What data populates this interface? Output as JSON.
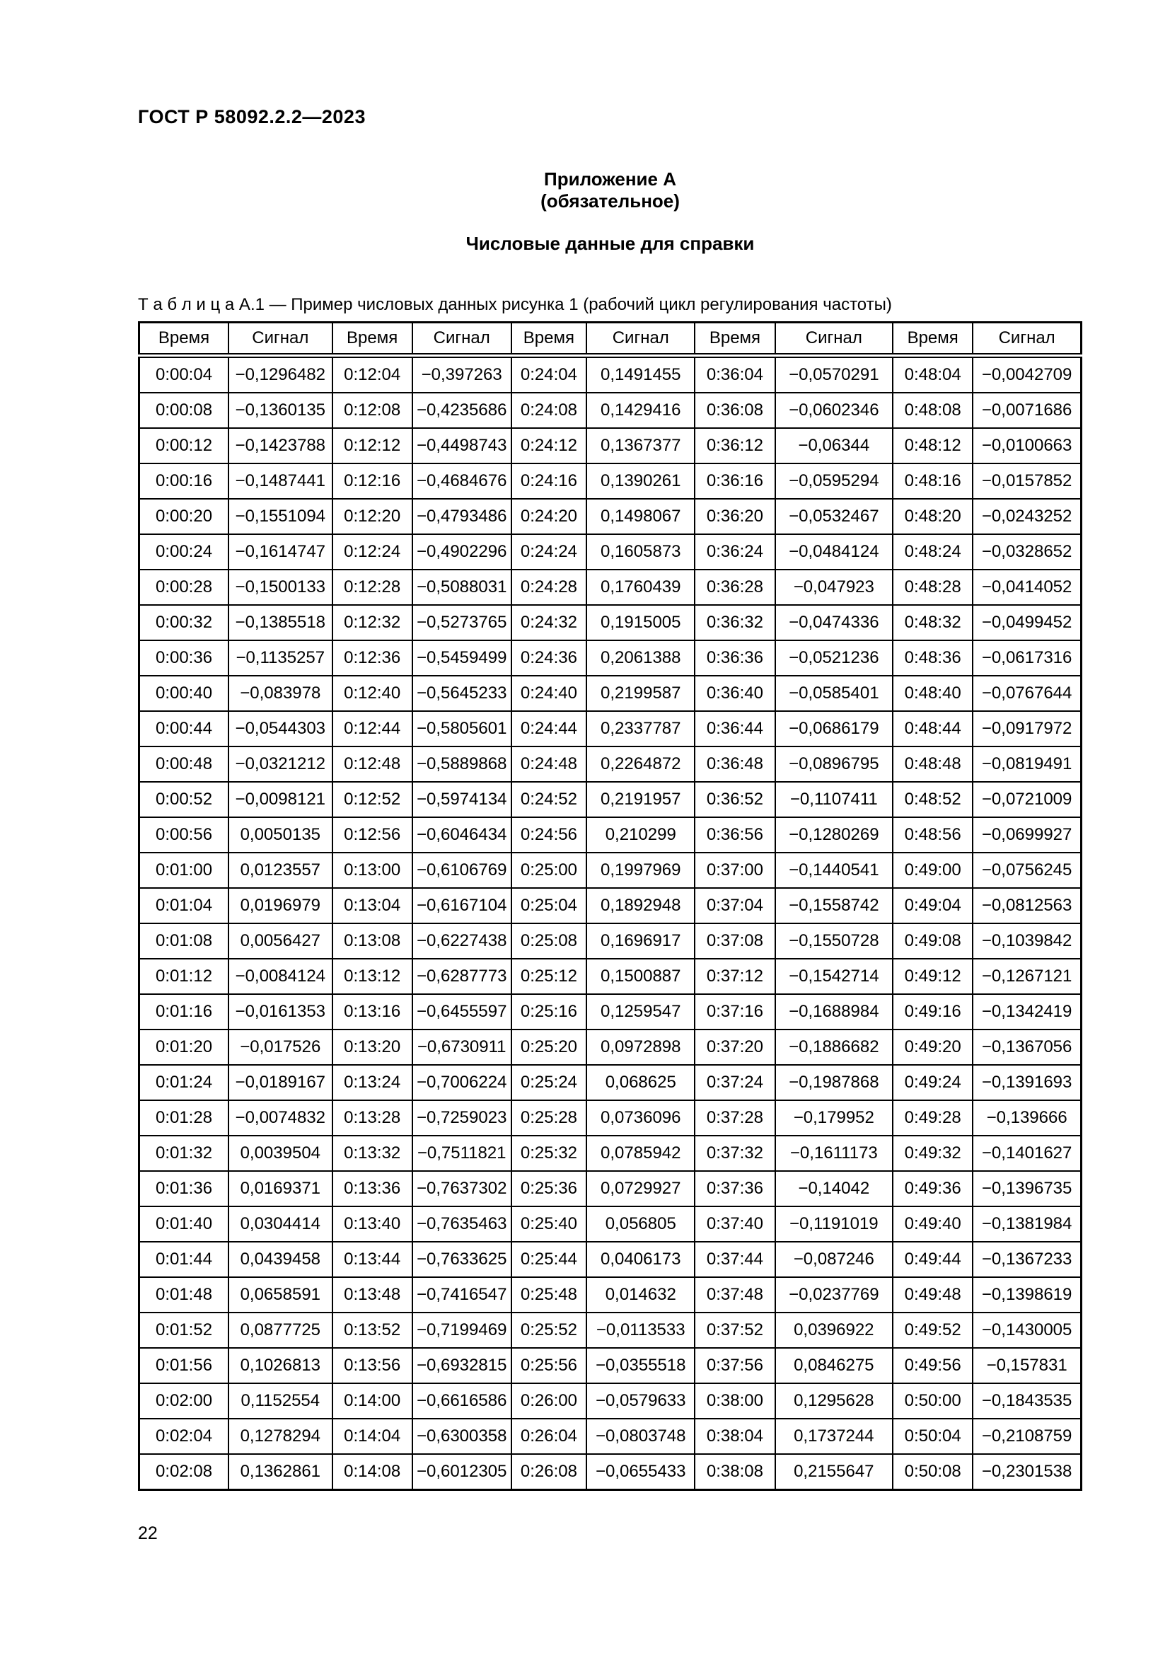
{
  "page": {
    "doc_code": "ГОСТ Р 58092.2.2—2023",
    "appendix_title": "Приложение А",
    "appendix_subtitle": "(обязательное)",
    "section_title": "Числовые данные для справки",
    "table_caption": "Т а б л и ц а  А.1 — Пример числовых данных рисунка 1 (рабочий цикл регулирования частоты)",
    "page_number": "22"
  },
  "table": {
    "headers": [
      "Время",
      "Сигнал",
      "Время",
      "Сигнал",
      "Время",
      "Сигнал",
      "Время",
      "Сигнал",
      "Время",
      "Сигнал"
    ],
    "col_widths_pct": [
      9.5,
      11.0,
      8.5,
      10.5,
      8.0,
      11.5,
      8.5,
      12.5,
      8.5,
      11.5
    ],
    "rows": [
      [
        "0:00:04",
        "−0,1296482",
        "0:12:04",
        "−0,397263",
        "0:24:04",
        "0,1491455",
        "0:36:04",
        "−0,0570291",
        "0:48:04",
        "−0,0042709"
      ],
      [
        "0:00:08",
        "−0,1360135",
        "0:12:08",
        "−0,4235686",
        "0:24:08",
        "0,1429416",
        "0:36:08",
        "−0,0602346",
        "0:48:08",
        "−0,0071686"
      ],
      [
        "0:00:12",
        "−0,1423788",
        "0:12:12",
        "−0,4498743",
        "0:24:12",
        "0,1367377",
        "0:36:12",
        "−0,06344",
        "0:48:12",
        "−0,0100663"
      ],
      [
        "0:00:16",
        "−0,1487441",
        "0:12:16",
        "−0,4684676",
        "0:24:16",
        "0,1390261",
        "0:36:16",
        "−0,0595294",
        "0:48:16",
        "−0,0157852"
      ],
      [
        "0:00:20",
        "−0,1551094",
        "0:12:20",
        "−0,4793486",
        "0:24:20",
        "0,1498067",
        "0:36:20",
        "−0,0532467",
        "0:48:20",
        "−0,0243252"
      ],
      [
        "0:00:24",
        "−0,1614747",
        "0:12:24",
        "−0,4902296",
        "0:24:24",
        "0,1605873",
        "0:36:24",
        "−0,0484124",
        "0:48:24",
        "−0,0328652"
      ],
      [
        "0:00:28",
        "−0,1500133",
        "0:12:28",
        "−0,5088031",
        "0:24:28",
        "0,1760439",
        "0:36:28",
        "−0,047923",
        "0:48:28",
        "−0,0414052"
      ],
      [
        "0:00:32",
        "−0,1385518",
        "0:12:32",
        "−0,5273765",
        "0:24:32",
        "0,1915005",
        "0:36:32",
        "−0,0474336",
        "0:48:32",
        "−0,0499452"
      ],
      [
        "0:00:36",
        "−0,1135257",
        "0:12:36",
        "−0,5459499",
        "0:24:36",
        "0,2061388",
        "0:36:36",
        "−0,0521236",
        "0:48:36",
        "−0,0617316"
      ],
      [
        "0:00:40",
        "−0,083978",
        "0:12:40",
        "−0,5645233",
        "0:24:40",
        "0,2199587",
        "0:36:40",
        "−0,0585401",
        "0:48:40",
        "−0,0767644"
      ],
      [
        "0:00:44",
        "−0,0544303",
        "0:12:44",
        "−0,5805601",
        "0:24:44",
        "0,2337787",
        "0:36:44",
        "−0,0686179",
        "0:48:44",
        "−0,0917972"
      ],
      [
        "0:00:48",
        "−0,0321212",
        "0:12:48",
        "−0,5889868",
        "0:24:48",
        "0,2264872",
        "0:36:48",
        "−0,0896795",
        "0:48:48",
        "−0,0819491"
      ],
      [
        "0:00:52",
        "−0,0098121",
        "0:12:52",
        "−0,5974134",
        "0:24:52",
        "0,2191957",
        "0:36:52",
        "−0,1107411",
        "0:48:52",
        "−0,0721009"
      ],
      [
        "0:00:56",
        "0,0050135",
        "0:12:56",
        "−0,6046434",
        "0:24:56",
        "0,210299",
        "0:36:56",
        "−0,1280269",
        "0:48:56",
        "−0,0699927"
      ],
      [
        "0:01:00",
        "0,0123557",
        "0:13:00",
        "−0,6106769",
        "0:25:00",
        "0,1997969",
        "0:37:00",
        "−0,1440541",
        "0:49:00",
        "−0,0756245"
      ],
      [
        "0:01:04",
        "0,0196979",
        "0:13:04",
        "−0,6167104",
        "0:25:04",
        "0,1892948",
        "0:37:04",
        "−0,1558742",
        "0:49:04",
        "−0,0812563"
      ],
      [
        "0:01:08",
        "0,0056427",
        "0:13:08",
        "−0,6227438",
        "0:25:08",
        "0,1696917",
        "0:37:08",
        "−0,1550728",
        "0:49:08",
        "−0,1039842"
      ],
      [
        "0:01:12",
        "−0,0084124",
        "0:13:12",
        "−0,6287773",
        "0:25:12",
        "0,1500887",
        "0:37:12",
        "−0,1542714",
        "0:49:12",
        "−0,1267121"
      ],
      [
        "0:01:16",
        "−0,0161353",
        "0:13:16",
        "−0,6455597",
        "0:25:16",
        "0,1259547",
        "0:37:16",
        "−0,1688984",
        "0:49:16",
        "−0,1342419"
      ],
      [
        "0:01:20",
        "−0,017526",
        "0:13:20",
        "−0,6730911",
        "0:25:20",
        "0,0972898",
        "0:37:20",
        "−0,1886682",
        "0:49:20",
        "−0,1367056"
      ],
      [
        "0:01:24",
        "−0,0189167",
        "0:13:24",
        "−0,7006224",
        "0:25:24",
        "0,068625",
        "0:37:24",
        "−0,1987868",
        "0:49:24",
        "−0,1391693"
      ],
      [
        "0:01:28",
        "−0,0074832",
        "0:13:28",
        "−0,7259023",
        "0:25:28",
        "0,0736096",
        "0:37:28",
        "−0,179952",
        "0:49:28",
        "−0,139666"
      ],
      [
        "0:01:32",
        "0,0039504",
        "0:13:32",
        "−0,7511821",
        "0:25:32",
        "0,0785942",
        "0:37:32",
        "−0,1611173",
        "0:49:32",
        "−0,1401627"
      ],
      [
        "0:01:36",
        "0,0169371",
        "0:13:36",
        "−0,7637302",
        "0:25:36",
        "0,0729927",
        "0:37:36",
        "−0,14042",
        "0:49:36",
        "−0,1396735"
      ],
      [
        "0:01:40",
        "0,0304414",
        "0:13:40",
        "−0,7635463",
        "0:25:40",
        "0,056805",
        "0:37:40",
        "−0,1191019",
        "0:49:40",
        "−0,1381984"
      ],
      [
        "0:01:44",
        "0,0439458",
        "0:13:44",
        "−0,7633625",
        "0:25:44",
        "0,0406173",
        "0:37:44",
        "−0,087246",
        "0:49:44",
        "−0,1367233"
      ],
      [
        "0:01:48",
        "0,0658591",
        "0:13:48",
        "−0,7416547",
        "0:25:48",
        "0,014632",
        "0:37:48",
        "−0,0237769",
        "0:49:48",
        "−0,1398619"
      ],
      [
        "0:01:52",
        "0,0877725",
        "0:13:52",
        "−0,7199469",
        "0:25:52",
        "−0,0113533",
        "0:37:52",
        "0,0396922",
        "0:49:52",
        "−0,1430005"
      ],
      [
        "0:01:56",
        "0,1026813",
        "0:13:56",
        "−0,6932815",
        "0:25:56",
        "−0,0355518",
        "0:37:56",
        "0,0846275",
        "0:49:56",
        "−0,157831"
      ],
      [
        "0:02:00",
        "0,1152554",
        "0:14:00",
        "−0,6616586",
        "0:26:00",
        "−0,0579633",
        "0:38:00",
        "0,1295628",
        "0:50:00",
        "−0,1843535"
      ],
      [
        "0:02:04",
        "0,1278294",
        "0:14:04",
        "−0,6300358",
        "0:26:04",
        "−0,0803748",
        "0:38:04",
        "0,1737244",
        "0:50:04",
        "−0,2108759"
      ],
      [
        "0:02:08",
        "0,1362861",
        "0:14:08",
        "−0,6012305",
        "0:26:08",
        "−0,0655433",
        "0:38:08",
        "0,2155647",
        "0:50:08",
        "−0,2301538"
      ]
    ]
  }
}
